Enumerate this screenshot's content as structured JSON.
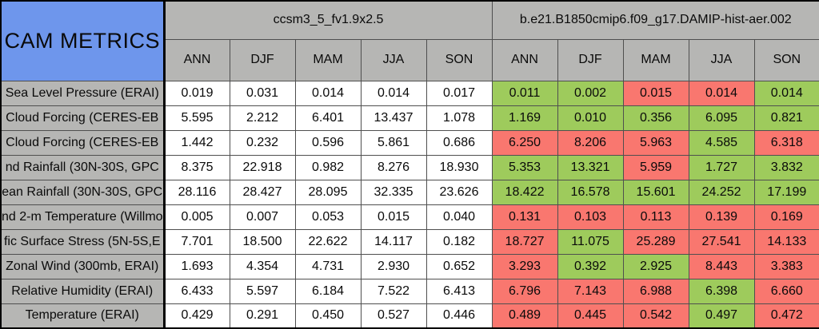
{
  "colors": {
    "title_bg": "#6e96ec",
    "header_bg": "#b6b6b4",
    "value_bg": "#ffffff",
    "good_green": "#9ecb5c",
    "bad_red": "#f9776f",
    "grid_line": "#4f4f4f",
    "frame": "#000000"
  },
  "chart_data": {
    "type": "table",
    "title": "CAM METRICS",
    "column_groups": [
      {
        "name": "ccsm3_5_fv1.9x2.5",
        "columns": [
          "ANN",
          "DJF",
          "MAM",
          "JJA",
          "SON"
        ]
      },
      {
        "name": "b.e21.B1850cmip6.f09_g17.DAMIP-hist-aer.002",
        "columns": [
          "ANN",
          "DJF",
          "MAM",
          "JJA",
          "SON"
        ]
      }
    ],
    "rows": [
      {
        "label": "Sea Level Pressure (ERAI)",
        "model1": [
          "0.019",
          "0.031",
          "0.014",
          "0.014",
          "0.017"
        ],
        "model2": [
          "0.011",
          "0.002",
          "0.015",
          "0.014",
          "0.014"
        ],
        "model2_colors": [
          "green",
          "green",
          "red",
          "red",
          "green"
        ]
      },
      {
        "label": "Cloud Forcing (CERES-EB",
        "model1": [
          "5.595",
          "2.212",
          "6.401",
          "13.437",
          "1.078"
        ],
        "model2": [
          "1.169",
          "0.010",
          "0.356",
          "6.095",
          "0.821"
        ],
        "model2_colors": [
          "green",
          "green",
          "green",
          "green",
          "green"
        ]
      },
      {
        "label": "Cloud Forcing (CERES-EB",
        "model1": [
          "1.442",
          "0.232",
          "0.596",
          "5.861",
          "0.686"
        ],
        "model2": [
          "6.250",
          "8.206",
          "5.963",
          "4.585",
          "6.318"
        ],
        "model2_colors": [
          "red",
          "red",
          "red",
          "green",
          "red"
        ]
      },
      {
        "label": "nd Rainfall (30N-30S, GPC",
        "model1": [
          "8.375",
          "22.918",
          "0.982",
          "8.276",
          "18.930"
        ],
        "model2": [
          "5.353",
          "13.321",
          "5.959",
          "1.727",
          "3.832"
        ],
        "model2_colors": [
          "green",
          "green",
          "red",
          "green",
          "green"
        ]
      },
      {
        "label": "ean Rainfall (30N-30S, GPC",
        "model1": [
          "28.116",
          "28.427",
          "28.095",
          "32.335",
          "23.626"
        ],
        "model2": [
          "18.422",
          "16.578",
          "15.601",
          "24.252",
          "17.199"
        ],
        "model2_colors": [
          "green",
          "green",
          "green",
          "green",
          "green"
        ]
      },
      {
        "label": "nd 2-m Temperature (Willmo",
        "model1": [
          "0.005",
          "0.007",
          "0.053",
          "0.015",
          "0.040"
        ],
        "model2": [
          "0.131",
          "0.103",
          "0.113",
          "0.139",
          "0.169"
        ],
        "model2_colors": [
          "red",
          "red",
          "red",
          "red",
          "red"
        ]
      },
      {
        "label": "fic Surface Stress (5N-5S,E",
        "model1": [
          "7.701",
          "18.500",
          "22.622",
          "14.117",
          "0.182"
        ],
        "model2": [
          "18.727",
          "11.075",
          "25.289",
          "27.541",
          "14.133"
        ],
        "model2_colors": [
          "red",
          "green",
          "red",
          "red",
          "red"
        ]
      },
      {
        "label": "Zonal Wind (300mb, ERAI)",
        "model1": [
          "1.693",
          "4.354",
          "4.731",
          "2.930",
          "0.652"
        ],
        "model2": [
          "3.293",
          "0.392",
          "2.925",
          "8.443",
          "3.383"
        ],
        "model2_colors": [
          "red",
          "green",
          "green",
          "red",
          "red"
        ]
      },
      {
        "label": "Relative Humidity (ERAI)",
        "model1": [
          "6.433",
          "5.597",
          "6.184",
          "7.522",
          "6.413"
        ],
        "model2": [
          "6.796",
          "7.143",
          "6.988",
          "6.398",
          "6.660"
        ],
        "model2_colors": [
          "red",
          "red",
          "red",
          "green",
          "red"
        ]
      },
      {
        "label": "Temperature (ERAI)",
        "model1": [
          "0.429",
          "0.291",
          "0.450",
          "0.527",
          "0.446"
        ],
        "model2": [
          "0.489",
          "0.445",
          "0.542",
          "0.497",
          "0.472"
        ],
        "model2_colors": [
          "red",
          "red",
          "red",
          "green",
          "red"
        ]
      }
    ]
  }
}
